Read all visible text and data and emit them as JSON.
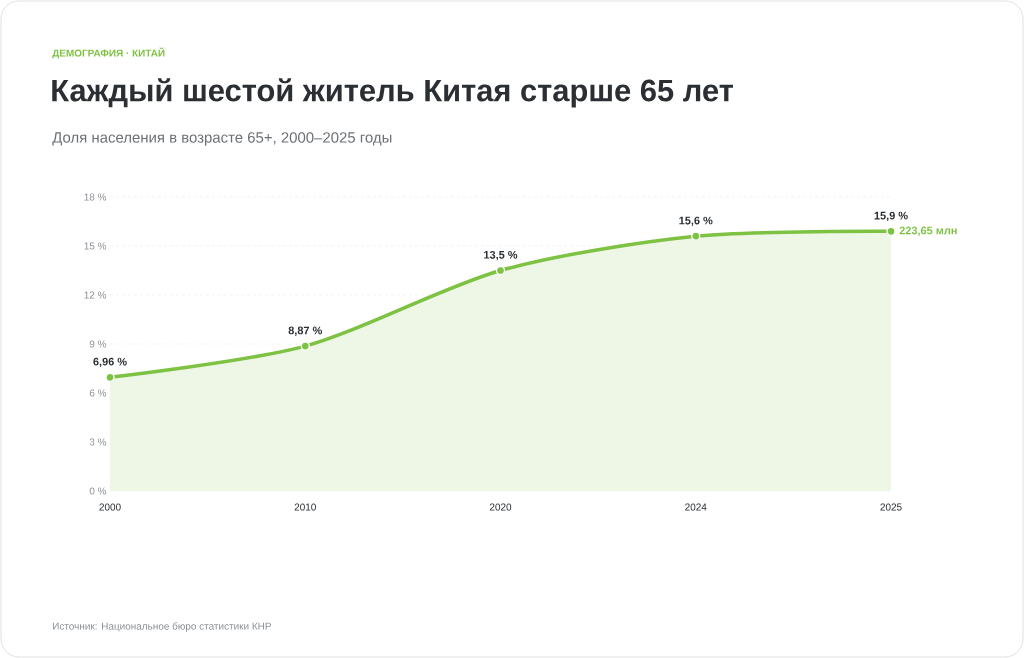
{
  "chart_data": {
    "type": "area",
    "title": "Каждый шестой житель Китая старше 65 лет",
    "subtitle": "Доля населения в возрасте 65+, 2000–2025 годы",
    "annotations": [
      "ДЕМОГРАФИЯ · КИТАЙ",
      "Источник: Национальное бюро статистики КНР",
      {
        "text": "223,65 млн",
        "x": "2025",
        "y": 15.9
      }
    ],
    "categories": [
      "2000",
      "2010",
      "2020",
      "2024",
      "2025"
    ],
    "values": [
      6.96,
      8.87,
      13.5,
      15.6,
      15.9
    ],
    "value_labels": [
      "6,96 %",
      "8,87 %",
      "13,5 %",
      "15,6 %",
      "15,9 %"
    ],
    "color": "#7dc242",
    "ylim": [
      0,
      18
    ],
    "yticks": [
      {
        "value": 0,
        "label": "0 %"
      },
      {
        "value": 3,
        "label": "3 %"
      },
      {
        "value": 6,
        "label": "6 %"
      },
      {
        "value": 9,
        "label": "9 %"
      },
      {
        "value": 12,
        "label": "12 %"
      },
      {
        "value": 15,
        "label": "15 %"
      },
      {
        "value": 18,
        "label": "18 %"
      }
    ],
    "grid": "y",
    "marker": "circle",
    "line_style": "solid"
  }
}
